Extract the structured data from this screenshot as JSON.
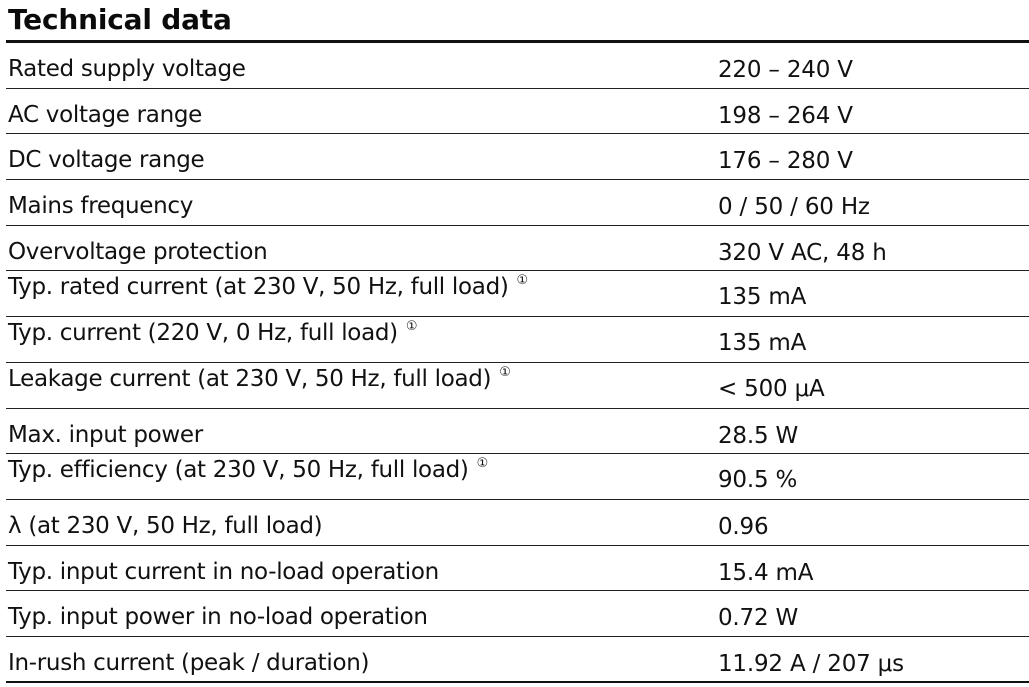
{
  "title": "Technical data",
  "note_marker": "①",
  "rows": [
    {
      "label": "Rated supply voltage",
      "value": "220 – 240 V",
      "note": false
    },
    {
      "label": "AC voltage range",
      "value": "198 – 264 V",
      "note": false
    },
    {
      "label": "DC voltage range",
      "value": "176 – 280 V",
      "note": false
    },
    {
      "label": "Mains frequency",
      "value": "0 / 50 / 60 Hz",
      "note": false
    },
    {
      "label": "Overvoltage protection",
      "value": "320 V AC, 48 h",
      "note": false
    },
    {
      "label": "Typ. rated current (at 230 V, 50 Hz, full load)",
      "value": "135 mA",
      "note": true
    },
    {
      "label": "Typ. current (220 V, 0 Hz, full load)",
      "value": "135 mA",
      "note": true
    },
    {
      "label": "Leakage current (at 230 V, 50 Hz, full load)",
      "value": "< 500 μA",
      "note": true
    },
    {
      "label": "Max. input power",
      "value": "28.5 W",
      "note": false
    },
    {
      "label": "Typ. efficiency (at 230 V, 50 Hz, full load)",
      "value": "90.5 %",
      "note": true
    },
    {
      "label": "λ (at 230 V, 50 Hz, full load)",
      "value": "0.96",
      "note": false
    },
    {
      "label": "Typ. input current in no-load operation",
      "value": "15.4 mA",
      "note": false
    },
    {
      "label": "Typ. input power in no-load operation",
      "value": "0.72 W",
      "note": false
    },
    {
      "label": "In-rush current (peak / duration)",
      "value": "11.92 A / 207 μs",
      "note": false
    }
  ]
}
